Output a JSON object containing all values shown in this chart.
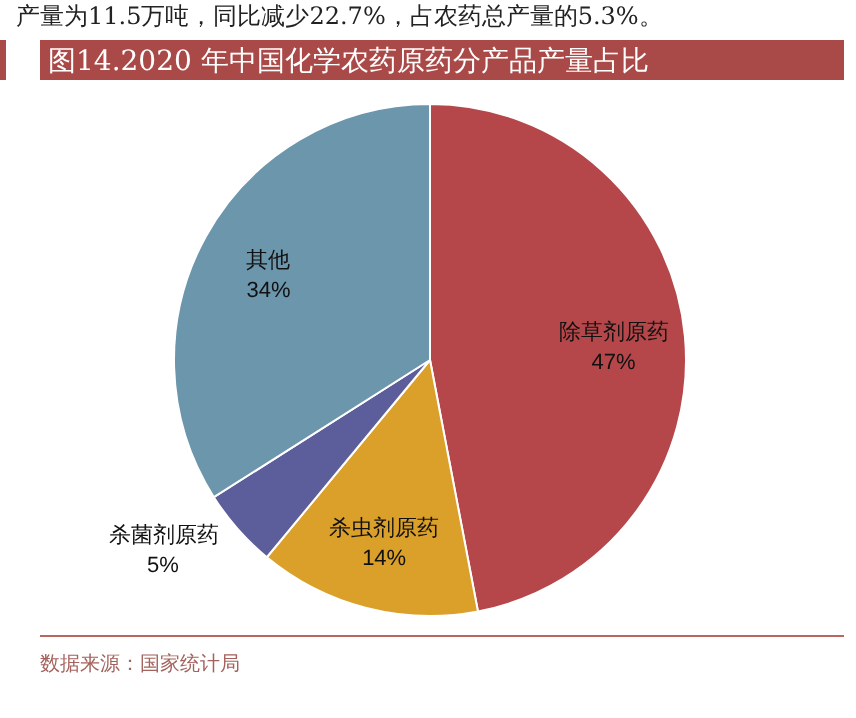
{
  "chart_data": {
    "type": "pie",
    "title": "图14.2020 年中国化学农药原药分产品产量占比",
    "categories": [
      "除草剂原药",
      "杀虫剂原药",
      "杀菌剂原药",
      "其他"
    ],
    "values": [
      47,
      14,
      5,
      34
    ],
    "colors": [
      "#b5474a",
      "#dba02a",
      "#5b5e9a",
      "#6b96ab"
    ],
    "value_labels": [
      "47%",
      "14%",
      "5%",
      "34%"
    ],
    "annotations": [
      "产量为11.5万吨，同比减少22.7%，占农药总产量的5.3%。",
      "数据来源：国家统计局"
    ]
  }
}
